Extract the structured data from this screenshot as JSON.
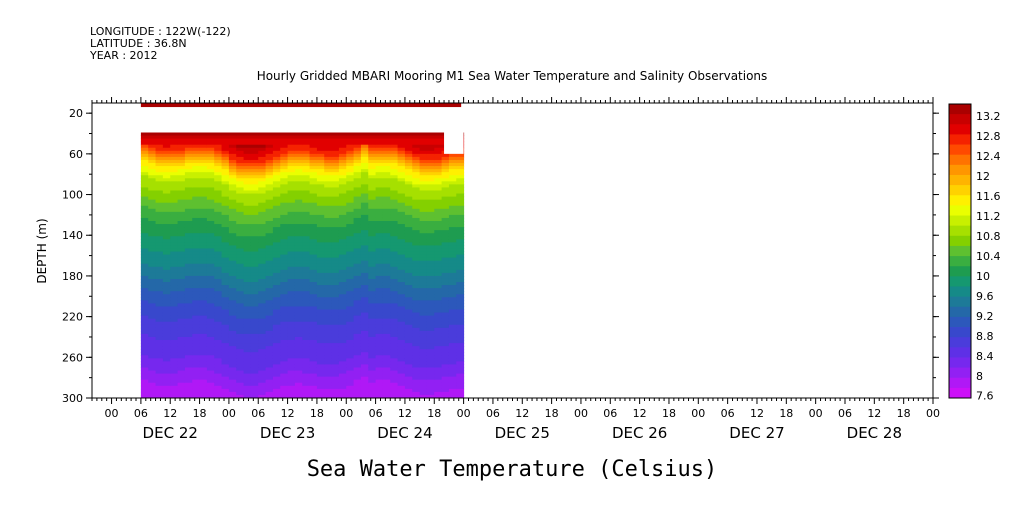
{
  "header": {
    "longitude": "LONGITUDE : 122W(-122)",
    "latitude": "LATITUDE : 36.8N",
    "year": "YEAR : 2012"
  },
  "chart_data": {
    "type": "heatmap",
    "title": "Hourly Gridded MBARI Mooring M1 Sea Water Temperature and Salinity Observations",
    "xlabel": "Sea Water Temperature (Celsius)",
    "ylabel": "DEPTH (m)",
    "ylim": [
      300,
      10
    ],
    "yticks": [
      20,
      60,
      100,
      140,
      180,
      220,
      260,
      300
    ],
    "xrange_hours": [
      "2012-12-21T20:00",
      "2012-12-29T00:00"
    ],
    "xtick_labels": [
      "00",
      "06",
      "12",
      "18",
      "00",
      "06",
      "12",
      "18",
      "00",
      "06",
      "12",
      "18",
      "00",
      "06",
      "12",
      "18",
      "00",
      "06",
      "12",
      "18",
      "00",
      "06",
      "12",
      "18",
      "00",
      "06",
      "12",
      "18",
      "00"
    ],
    "day_labels": [
      "DEC 22",
      "DEC 23",
      "DEC 24",
      "DEC 25",
      "DEC 26",
      "DEC 27",
      "DEC 28"
    ],
    "data_extent": {
      "start": "2012-12-22T06:00",
      "end": "2012-12-25T00:00"
    },
    "colorbar": {
      "min": 7.6,
      "max": 13.4,
      "labels": [
        "13.2",
        "12.8",
        "12.4",
        "12",
        "11.6",
        "11.2",
        "10.8",
        "10.4",
        "10",
        "9.6",
        "9.2",
        "8.8",
        "8.4",
        "8",
        "7.6"
      ],
      "colors": [
        "#aa0000",
        "#c80000",
        "#e10000",
        "#f52200",
        "#ff4a00",
        "#ff7200",
        "#ff9600",
        "#ffb400",
        "#ffd200",
        "#fff000",
        "#eaff00",
        "#c8f000",
        "#a6e000",
        "#84d000",
        "#5ec030",
        "#3aae40",
        "#1e9c50",
        "#159870",
        "#158a88",
        "#1d7a98",
        "#2468a8",
        "#2c58bb",
        "#3848cc",
        "#4a3cdb",
        "#5e30e6",
        "#7628ee",
        "#9220f3",
        "#b018f6",
        "#cc10f8"
      ]
    },
    "depth_profile": [
      {
        "depth": 20,
        "temp": 13.3
      },
      {
        "depth": 40,
        "temp": 13.2
      },
      {
        "depth": 55,
        "temp": 12.6
      },
      {
        "depth": 70,
        "temp": 11.6
      },
      {
        "depth": 85,
        "temp": 11.0
      },
      {
        "depth": 100,
        "temp": 10.7
      },
      {
        "depth": 120,
        "temp": 10.3
      },
      {
        "depth": 140,
        "temp": 10.0
      },
      {
        "depth": 170,
        "temp": 9.6
      },
      {
        "depth": 200,
        "temp": 9.1
      },
      {
        "depth": 230,
        "temp": 8.7
      },
      {
        "depth": 260,
        "temp": 8.4
      },
      {
        "depth": 285,
        "temp": 8.0
      },
      {
        "depth": 300,
        "temp": 7.8
      }
    ]
  }
}
